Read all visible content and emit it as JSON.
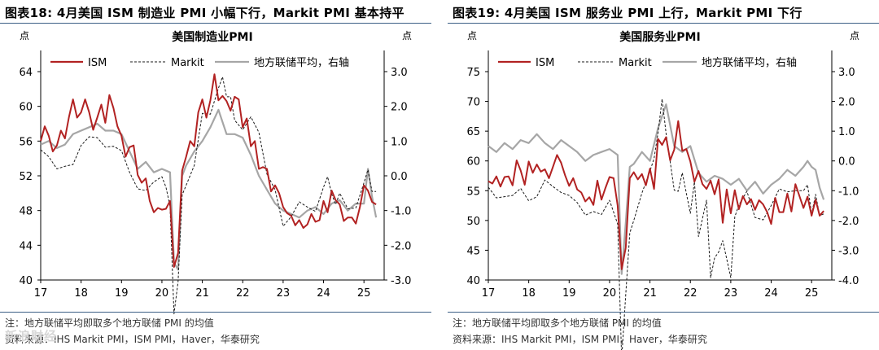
{
  "panels": [
    {
      "figure_title": "图表18:  4月美国 ISM 制造业 PMI 小幅下行，Markit PMI 基本持平",
      "note": "注：地方联储平均即取多个地方联储 PMI 的均值",
      "source": "资料来源：IHS Markit PMI，ISM PMI，Haver，华泰研究"
    },
    {
      "figure_title": "图表19:  4月美国 ISM 服务业 PMI 上行，Markit PMI 下行",
      "note": "注：地方联储平均即取多个地方联储 PMI 的均值",
      "source": "资料来源：IHS Markit PMI，ISM PMI，Haver，华泰研究"
    }
  ],
  "watermark": "新浪财经",
  "chart_data": [
    {
      "type": "line",
      "title": "美国制造业PMI",
      "ylabel_left": "点",
      "ylabel_right": "点",
      "x_ticks": [
        "17",
        "18",
        "19",
        "20",
        "21",
        "22",
        "23",
        "24",
        "25"
      ],
      "x_range": [
        2017.0,
        2025.5
      ],
      "ylim_left": [
        40,
        64
      ],
      "yticks_left": [
        "40",
        "44",
        "48",
        "52",
        "56",
        "60",
        "64"
      ],
      "ylim_right": [
        -3.0,
        3.0
      ],
      "yticks_right": [
        "-3.0",
        "-2.0",
        "-1.0",
        "0.0",
        "1.0",
        "2.0",
        "3.0"
      ],
      "legend": "top",
      "grid": false,
      "colors": {
        "ISM": "#b22222",
        "Markit": "#1a1a1a",
        "地方联储平均，右轴": "#a6a6a6"
      },
      "series": [
        {
          "name": "ISM",
          "axis": "left",
          "style": "solid",
          "x": [
            2017.0,
            2017.1,
            2017.2,
            2017.3,
            2017.4,
            2017.5,
            2017.6,
            2017.7,
            2017.8,
            2017.9,
            2018.0,
            2018.1,
            2018.2,
            2018.3,
            2018.4,
            2018.5,
            2018.6,
            2018.7,
            2018.8,
            2018.9,
            2019.0,
            2019.1,
            2019.2,
            2019.3,
            2019.4,
            2019.5,
            2019.6,
            2019.7,
            2019.8,
            2019.9,
            2020.0,
            2020.1,
            2020.2,
            2020.3,
            2020.4,
            2020.5,
            2020.6,
            2020.7,
            2020.8,
            2020.9,
            2021.0,
            2021.1,
            2021.2,
            2021.3,
            2021.4,
            2021.5,
            2021.6,
            2021.7,
            2021.8,
            2021.9,
            2022.0,
            2022.1,
            2022.2,
            2022.3,
            2022.4,
            2022.5,
            2022.6,
            2022.7,
            2022.8,
            2022.9,
            2023.0,
            2023.1,
            2023.2,
            2023.3,
            2023.4,
            2023.5,
            2023.6,
            2023.7,
            2023.8,
            2023.9,
            2024.0,
            2024.1,
            2024.2,
            2024.3,
            2024.4,
            2024.5,
            2024.6,
            2024.7,
            2024.8,
            2024.9,
            2025.0,
            2025.1,
            2025.2,
            2025.3
          ],
          "values": [
            56.0,
            57.7,
            56.6,
            54.8,
            55.5,
            57.2,
            56.3,
            58.8,
            60.8,
            58.7,
            59.3,
            60.8,
            59.3,
            57.3,
            58.7,
            60.2,
            58.1,
            61.3,
            59.8,
            57.7,
            56.6,
            54.2,
            55.3,
            55.5,
            52.1,
            51.2,
            51.7,
            49.1,
            47.8,
            48.3,
            48.1,
            48.2,
            49.1,
            41.5,
            43.1,
            52.6,
            54.2,
            56.0,
            55.4,
            59.3,
            60.8,
            58.7,
            60.7,
            63.7,
            60.7,
            61.2,
            60.6,
            59.5,
            61.1,
            60.8,
            57.6,
            58.6,
            55.4,
            56.0,
            52.8,
            53.0,
            52.8,
            50.2,
            50.9,
            50.0,
            48.4,
            47.7,
            47.4,
            46.3,
            46.9,
            46.0,
            46.4,
            47.6,
            46.7,
            46.9,
            49.1,
            47.8,
            50.3,
            49.2,
            48.7,
            46.8,
            47.2,
            47.2,
            46.5,
            48.4,
            50.9,
            50.3,
            49.0,
            48.7
          ]
        },
        {
          "name": "Markit",
          "axis": "left",
          "style": "dashed",
          "x": [
            2017.0,
            2017.2,
            2017.4,
            2017.6,
            2017.8,
            2018.0,
            2018.2,
            2018.4,
            2018.6,
            2018.8,
            2019.0,
            2019.2,
            2019.4,
            2019.6,
            2019.8,
            2020.0,
            2020.1,
            2020.2,
            2020.3,
            2020.4,
            2020.5,
            2020.6,
            2020.8,
            2021.0,
            2021.2,
            2021.4,
            2021.5,
            2021.6,
            2021.7,
            2021.8,
            2022.0,
            2022.2,
            2022.4,
            2022.6,
            2022.8,
            2023.0,
            2023.2,
            2023.4,
            2023.6,
            2023.8,
            2024.0,
            2024.1,
            2024.2,
            2024.3,
            2024.4,
            2024.6,
            2024.8,
            2025.0,
            2025.1,
            2025.2,
            2025.3
          ],
          "values": [
            55.0,
            54.2,
            52.8,
            53.1,
            53.3,
            55.5,
            56.5,
            56.4,
            55.3,
            55.4,
            54.9,
            52.4,
            50.5,
            50.3,
            51.3,
            51.9,
            50.7,
            48.5,
            36.1,
            39.8,
            49.8,
            50.9,
            53.2,
            59.2,
            59.1,
            62.1,
            63.4,
            61.1,
            61.1,
            58.4,
            57.3,
            58.8,
            57.0,
            52.2,
            50.4,
            46.2,
            47.3,
            49.0,
            48.4,
            47.9,
            50.7,
            51.9,
            49.9,
            48.7,
            50.0,
            48.2,
            48.3,
            51.2,
            52.7,
            50.2,
            50.2
          ]
        },
        {
          "name": "地方联储平均，右轴",
          "axis": "right",
          "style": "solid",
          "x": [
            2017.0,
            2017.2,
            2017.4,
            2017.6,
            2017.8,
            2018.0,
            2018.2,
            2018.4,
            2018.6,
            2018.8,
            2019.0,
            2019.2,
            2019.4,
            2019.6,
            2019.8,
            2020.0,
            2020.2,
            2020.3,
            2020.4,
            2020.5,
            2020.6,
            2020.8,
            2021.0,
            2021.2,
            2021.4,
            2021.6,
            2021.8,
            2022.0,
            2022.2,
            2022.4,
            2022.6,
            2022.8,
            2023.0,
            2023.2,
            2023.4,
            2023.6,
            2023.8,
            2024.0,
            2024.2,
            2024.4,
            2024.6,
            2024.8,
            2025.0,
            2025.1,
            2025.2,
            2025.3
          ],
          "values": [
            0.9,
            1.0,
            0.8,
            0.9,
            1.2,
            1.3,
            1.4,
            1.5,
            1.3,
            1.3,
            1.2,
            0.7,
            0.2,
            0.4,
            0.1,
            0.2,
            0.1,
            -2.5,
            -2.7,
            0.0,
            0.3,
            0.7,
            1.0,
            1.4,
            1.9,
            1.2,
            1.2,
            1.1,
            0.6,
            0.0,
            -0.4,
            -0.8,
            -1.0,
            -1.1,
            -1.2,
            -1.0,
            -0.9,
            -1.1,
            -0.8,
            -0.7,
            -1.0,
            -0.8,
            -0.8,
            0.2,
            -0.6,
            -1.2
          ]
        }
      ]
    },
    {
      "type": "line",
      "title": "美国服务业PMI",
      "ylabel_left": "点",
      "ylabel_right": "点",
      "x_ticks": [
        "17",
        "18",
        "19",
        "20",
        "21",
        "22",
        "23",
        "24",
        "25"
      ],
      "x_range": [
        2017.0,
        2025.5
      ],
      "ylim_left": [
        40,
        75
      ],
      "yticks_left": [
        "40",
        "45",
        "50",
        "55",
        "60",
        "65",
        "70",
        "75"
      ],
      "ylim_right": [
        -4.0,
        3.0
      ],
      "yticks_right": [
        "-4.0",
        "-3.0",
        "-2.0",
        "-1.0",
        "0.0",
        "1.0",
        "2.0",
        "3.0"
      ],
      "legend": "top",
      "grid": false,
      "colors": {
        "ISM": "#b22222",
        "Markit": "#1a1a1a",
        "地方联储平均，右轴": "#a6a6a6"
      },
      "series": [
        {
          "name": "ISM",
          "axis": "left",
          "style": "solid",
          "x": [
            2017.0,
            2017.1,
            2017.2,
            2017.3,
            2017.4,
            2017.5,
            2017.6,
            2017.7,
            2017.8,
            2017.9,
            2018.0,
            2018.1,
            2018.2,
            2018.3,
            2018.4,
            2018.5,
            2018.6,
            2018.7,
            2018.8,
            2018.9,
            2019.0,
            2019.1,
            2019.2,
            2019.3,
            2019.4,
            2019.5,
            2019.6,
            2019.7,
            2019.8,
            2019.9,
            2020.0,
            2020.1,
            2020.2,
            2020.3,
            2020.4,
            2020.5,
            2020.6,
            2020.7,
            2020.8,
            2020.9,
            2021.0,
            2021.1,
            2021.2,
            2021.3,
            2021.4,
            2021.5,
            2021.6,
            2021.7,
            2021.8,
            2021.9,
            2022.0,
            2022.1,
            2022.2,
            2022.3,
            2022.4,
            2022.5,
            2022.6,
            2022.7,
            2022.8,
            2022.9,
            2023.0,
            2023.1,
            2023.2,
            2023.3,
            2023.4,
            2023.5,
            2023.6,
            2023.7,
            2023.8,
            2023.9,
            2024.0,
            2024.1,
            2024.2,
            2024.3,
            2024.4,
            2024.5,
            2024.6,
            2024.8,
            2024.9,
            2025.0,
            2025.1,
            2025.2,
            2025.3
          ],
          "values": [
            56.6,
            56.2,
            57.4,
            55.7,
            57.3,
            57.4,
            55.9,
            60.1,
            58.4,
            56.0,
            59.9,
            58.0,
            59.4,
            58.2,
            58.6,
            57.1,
            59.0,
            61.0,
            59.7,
            57.6,
            55.8,
            57.1,
            55.2,
            54.7,
            53.2,
            53.9,
            52.6,
            56.7,
            53.5,
            55.5,
            57.3,
            57.1,
            52.5,
            41.8,
            45.4,
            57.1,
            58.1,
            56.9,
            57.8,
            55.9,
            58.7,
            55.3,
            63.7,
            62.7,
            64.0,
            60.1,
            61.9,
            66.7,
            61.7,
            62.0,
            59.9,
            56.5,
            58.3,
            56.1,
            55.3,
            56.7,
            54.4,
            56.9,
            49.6,
            55.2,
            51.2,
            55.1,
            51.9,
            54.1,
            52.7,
            53.6,
            51.8,
            53.4,
            52.7,
            51.4,
            49.4,
            53.8,
            51.4,
            51.4,
            54.5,
            51.5,
            56.1,
            52.1,
            54.0,
            50.8,
            53.5,
            50.8,
            51.6
          ]
        },
        {
          "name": "Markit",
          "axis": "left",
          "style": "dashed",
          "x": [
            2017.0,
            2017.2,
            2017.4,
            2017.6,
            2017.8,
            2018.0,
            2018.2,
            2018.4,
            2018.6,
            2018.8,
            2019.0,
            2019.2,
            2019.4,
            2019.6,
            2019.8,
            2020.0,
            2020.2,
            2020.3,
            2020.4,
            2020.5,
            2020.6,
            2020.8,
            2021.0,
            2021.1,
            2021.2,
            2021.3,
            2021.4,
            2021.5,
            2021.6,
            2021.7,
            2021.8,
            2022.0,
            2022.1,
            2022.2,
            2022.4,
            2022.5,
            2022.6,
            2022.7,
            2022.8,
            2023.0,
            2023.1,
            2023.2,
            2023.4,
            2023.6,
            2023.8,
            2024.0,
            2024.2,
            2024.4,
            2024.6,
            2024.8,
            2024.9,
            2025.0,
            2025.1,
            2025.2,
            2025.3
          ],
          "values": [
            55.6,
            53.8,
            54.0,
            54.2,
            55.4,
            53.3,
            54.0,
            56.8,
            55.7,
            54.7,
            54.2,
            53.0,
            50.9,
            51.5,
            51.0,
            53.4,
            49.4,
            26.7,
            37.5,
            47.9,
            50.0,
            54.6,
            58.3,
            60.4,
            64.7,
            70.4,
            64.6,
            59.9,
            55.1,
            54.9,
            58.0,
            51.2,
            56.5,
            47.3,
            53.4,
            40.4,
            43.7,
            44.7,
            46.6,
            40.4,
            50.6,
            52.6,
            54.9,
            50.5,
            50.1,
            52.5,
            55.3,
            54.8,
            55.0,
            55.0,
            56.0,
            51.0,
            54.4,
            50.8,
            51.1
          ]
        },
        {
          "name": "地方联储平均，右轴",
          "axis": "right",
          "style": "solid",
          "x": [
            2017.0,
            2017.2,
            2017.4,
            2017.6,
            2017.8,
            2018.0,
            2018.2,
            2018.4,
            2018.6,
            2018.8,
            2019.0,
            2019.2,
            2019.4,
            2019.6,
            2019.8,
            2020.0,
            2020.2,
            2020.3,
            2020.4,
            2020.5,
            2020.6,
            2020.8,
            2021.0,
            2021.2,
            2021.4,
            2021.6,
            2021.8,
            2022.0,
            2022.2,
            2022.4,
            2022.6,
            2022.8,
            2023.0,
            2023.2,
            2023.4,
            2023.6,
            2023.8,
            2024.0,
            2024.2,
            2024.4,
            2024.6,
            2024.8,
            2024.9,
            2025.0,
            2025.1,
            2025.2,
            2025.3
          ],
          "values": [
            0.5,
            0.3,
            0.6,
            0.4,
            0.7,
            0.6,
            0.9,
            0.6,
            0.4,
            0.7,
            0.5,
            0.3,
            0.0,
            0.2,
            0.3,
            0.4,
            0.2,
            -3.8,
            -2.1,
            -0.2,
            -0.1,
            0.3,
            0.0,
            1.1,
            1.9,
            0.5,
            0.3,
            0.5,
            -0.4,
            -0.7,
            -0.5,
            -0.6,
            -0.8,
            -0.6,
            -1.0,
            -0.7,
            -1.1,
            -0.8,
            -0.6,
            -0.3,
            -0.5,
            -0.2,
            0.0,
            -0.2,
            -0.3,
            -0.9,
            -1.3
          ]
        }
      ]
    }
  ]
}
